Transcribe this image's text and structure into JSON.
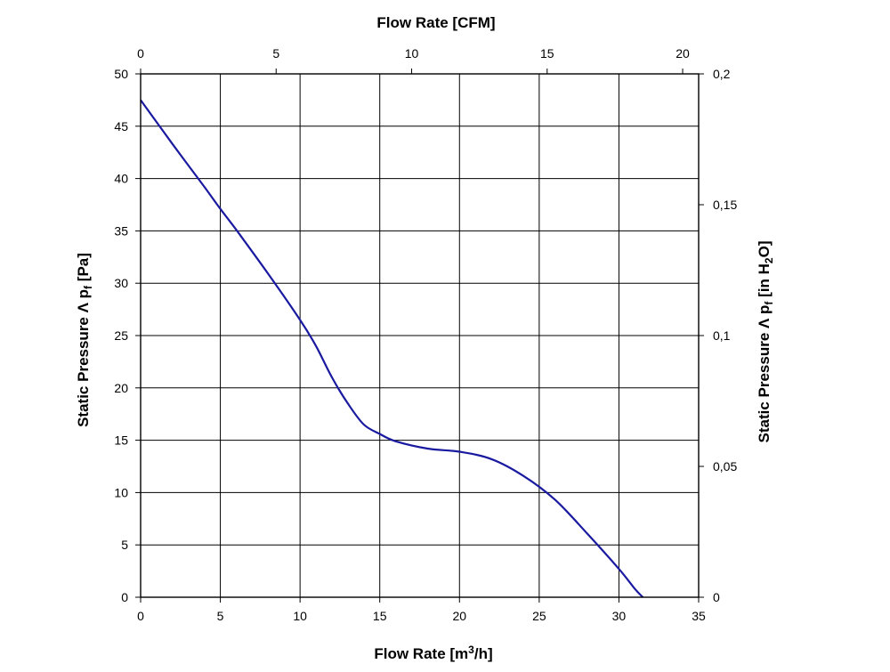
{
  "chart_data": {
    "type": "line",
    "title": "",
    "grid": true,
    "xlabel": {
      "text": "Flow Rate [m",
      "sup": "3",
      "tail": "/h]"
    },
    "x2label": "Flow Rate [CFM]",
    "ylabel": {
      "text": "Static Pressure Λ p",
      "sub": "f",
      "tail": " [Pa]"
    },
    "y2label": {
      "text": "Static Pressure Λ p",
      "sub": "f",
      "mid": " [in H",
      "sub2": "2",
      "tail": "O]"
    },
    "xlim": [
      0,
      35
    ],
    "ylim": [
      0,
      50
    ],
    "x2lim": [
      0,
      20.59
    ],
    "y2lim": [
      0,
      0.2
    ],
    "x_ticks": [
      0,
      5,
      10,
      15,
      20,
      25,
      30,
      35
    ],
    "y_ticks": [
      0,
      5,
      10,
      15,
      20,
      25,
      30,
      35,
      40,
      45,
      50
    ],
    "x2_ticks": [
      0,
      5,
      10,
      15,
      20
    ],
    "y2_ticks": [
      0,
      0.05,
      0.1,
      0.15,
      0.2
    ],
    "y2_tick_labels": [
      "0",
      "0,05",
      "0,1",
      "0,15",
      "0,2"
    ],
    "series": [
      {
        "color": "#1a1aa0",
        "x": [
          0,
          2,
          4,
          5,
          6,
          8,
          10,
          11,
          12,
          13,
          14,
          15,
          16,
          18,
          20,
          22,
          24,
          26,
          28,
          30,
          31,
          31.5
        ],
        "y": [
          47.5,
          43.3,
          39.2,
          37.1,
          35.1,
          30.9,
          26.5,
          24.0,
          21.0,
          18.5,
          16.5,
          15.6,
          14.9,
          14.2,
          13.9,
          13.2,
          11.6,
          9.3,
          6.1,
          2.7,
          0.8,
          0.0
        ]
      }
    ]
  }
}
